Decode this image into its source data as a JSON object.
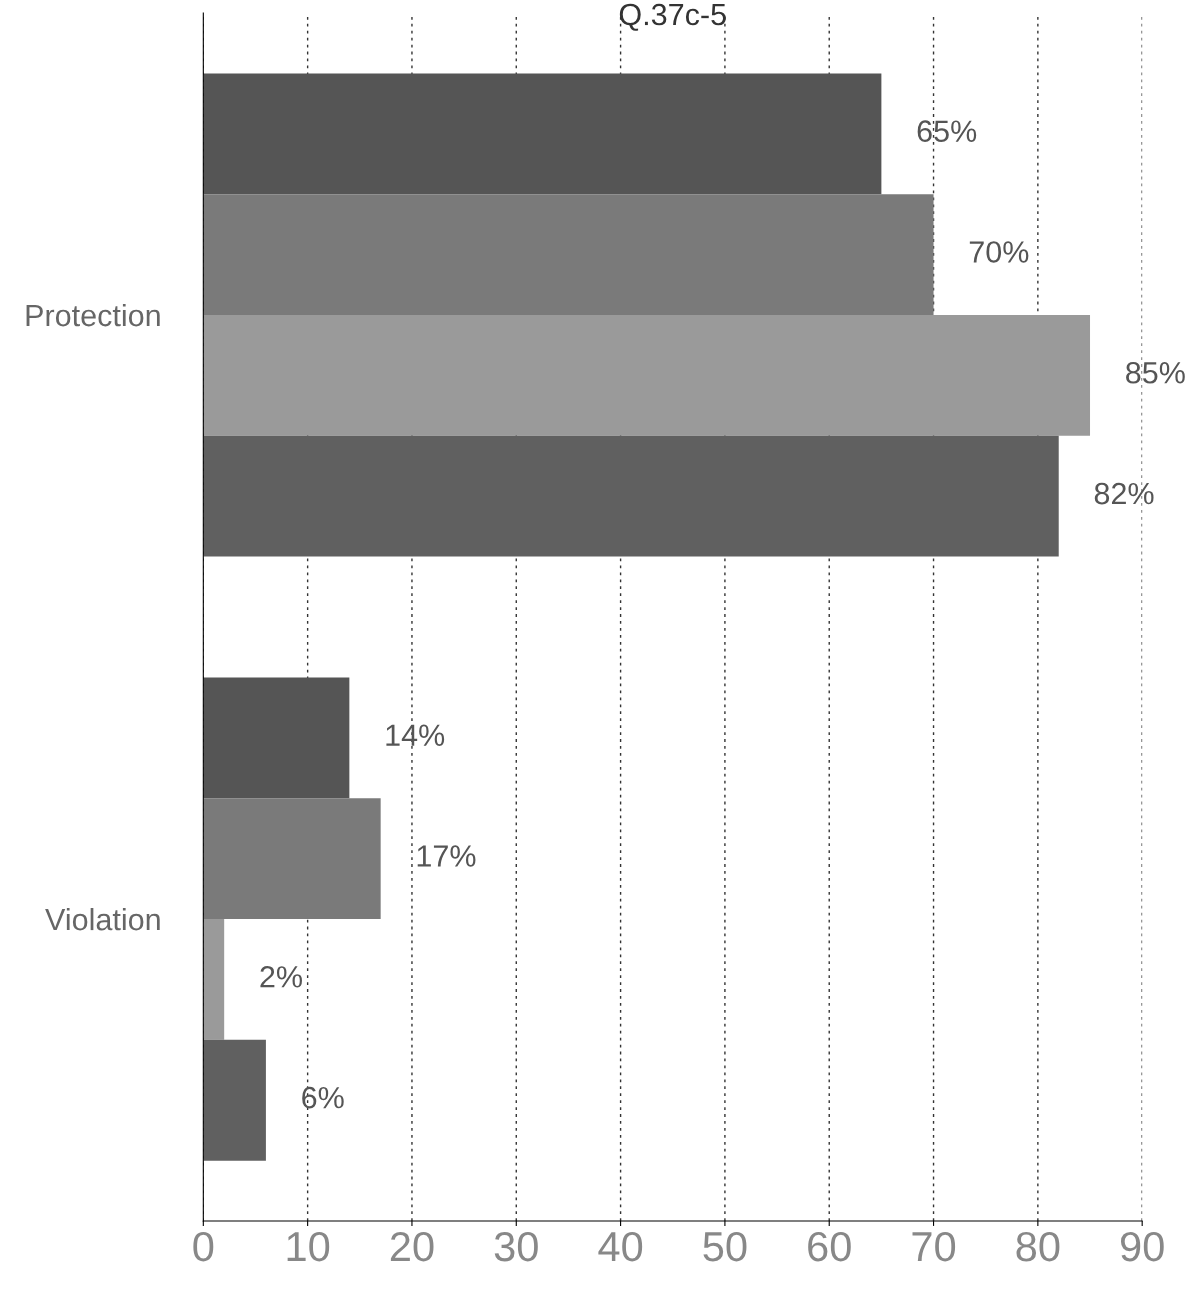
{
  "chart_data": {
    "type": "bar",
    "orientation": "horizontal",
    "title": "Q.37c-5",
    "categories": [
      "Protection",
      "Violation"
    ],
    "series": [
      {
        "color": "#555555",
        "values": [
          65,
          14
        ],
        "value_labels": [
          "65%",
          "14%"
        ]
      },
      {
        "color": "#7a7a7a",
        "values": [
          70,
          17
        ],
        "value_labels": [
          "70%",
          "17%"
        ]
      },
      {
        "color": "#9a9a9a",
        "values": [
          85,
          2
        ],
        "value_labels": [
          "85%",
          "2%"
        ]
      },
      {
        "color": "#606060",
        "values": [
          82,
          6
        ],
        "value_labels": [
          "82%",
          "6%"
        ]
      }
    ],
    "xlim": [
      0,
      90
    ],
    "xticks": [
      0,
      10,
      20,
      30,
      40,
      50,
      60,
      70,
      80,
      90
    ],
    "grid": "x",
    "legend": false
  }
}
